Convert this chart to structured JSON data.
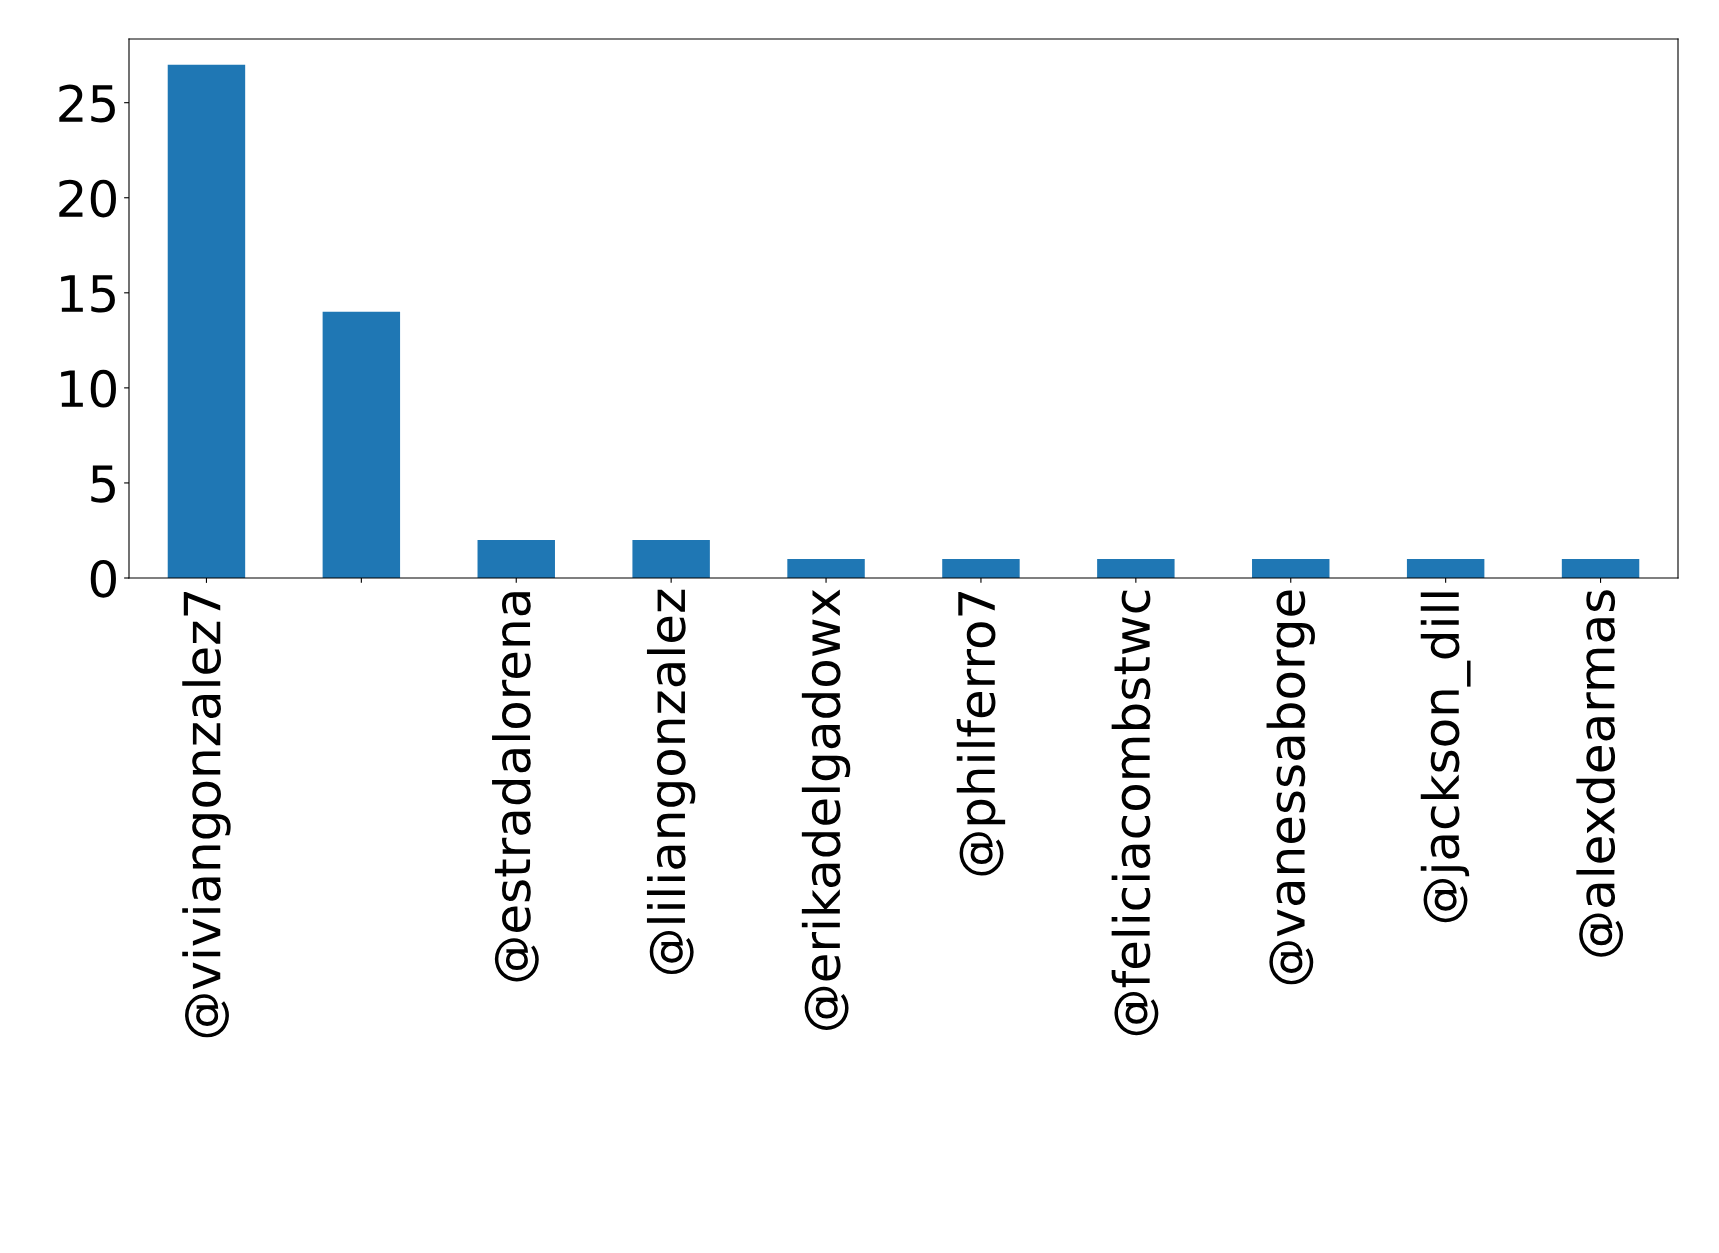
{
  "chart_data": {
    "type": "bar",
    "categories": [
      "@viviangonzalez7",
      null,
      "@estradalorena",
      "@liliangonzalez",
      "@erikadelgadowx",
      "@philferro7",
      "@feliciacombstwc",
      "@vanessaborge",
      "@jackson_dill",
      "@alexdearmas"
    ],
    "values": [
      27,
      14,
      2,
      2,
      1,
      1,
      1,
      1,
      1,
      1
    ],
    "color": "#1f77b4",
    "ylim": [
      0,
      28.35
    ],
    "yticks": [
      0,
      5,
      10,
      15,
      20,
      25
    ],
    "grid": false,
    "legend": false
  }
}
